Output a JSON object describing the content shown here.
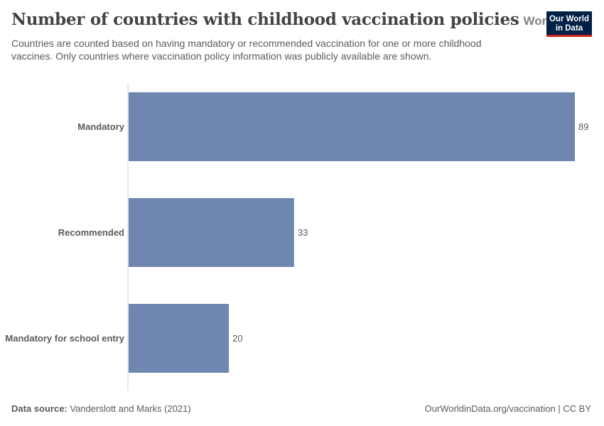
{
  "header": {
    "title": "Number of countries with childhood vaccination policies",
    "entity": "World",
    "subtitle": "Countries are counted based on having mandatory or recommended vaccination for one or more childhood vaccines. Only countries where vaccination policy information was publicly available are shown."
  },
  "logo": {
    "line1": "Our World",
    "line2": "in Data",
    "bg_color": "#002147",
    "accent_color": "#ce261e"
  },
  "footer": {
    "source_label": "Data source:",
    "source_text": "Vanderslott and Marks (2021)",
    "url_license": "OurWorldinData.org/vaccination | CC BY"
  },
  "chart_data": {
    "type": "bar",
    "orientation": "horizontal",
    "categories": [
      "Mandatory",
      "Recommended",
      "Mandatory for school entry"
    ],
    "values": [
      89,
      33,
      20
    ],
    "bar_color": "#6f87b0",
    "xlim": [
      0,
      89
    ],
    "grid": false
  }
}
